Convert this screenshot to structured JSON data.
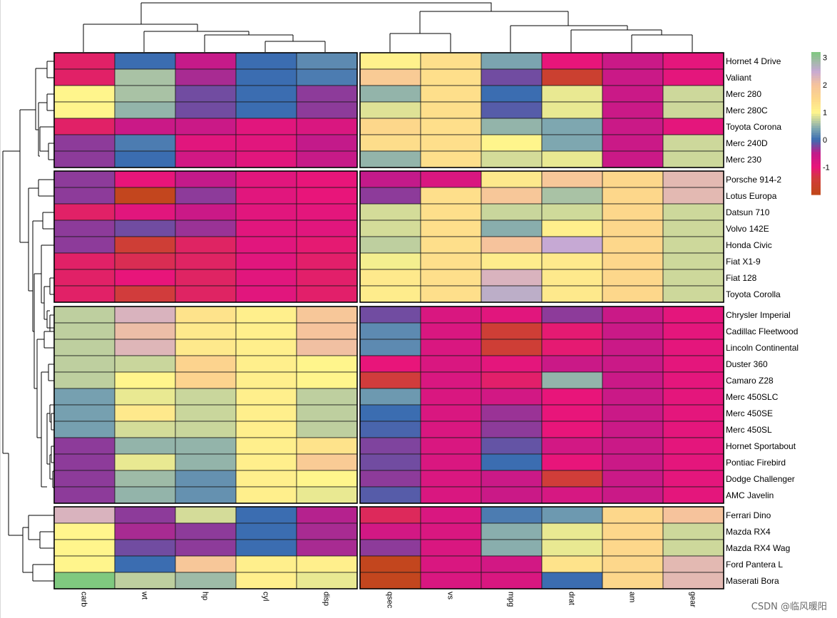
{
  "chart_data": {
    "type": "heatmap",
    "title": "",
    "xlabel": "",
    "ylabel": "",
    "value_range": [
      -2,
      3.2
    ],
    "legend": {
      "position": "right",
      "ticks": [
        3,
        2,
        1,
        0,
        -1
      ]
    },
    "colorscale": [
      {
        "v": -2.0,
        "c": "#c04818"
      },
      {
        "v": -1.4,
        "c": "#d13c3c"
      },
      {
        "v": -1.0,
        "c": "#e8157a"
      },
      {
        "v": -0.5,
        "c": "#c31a8a"
      },
      {
        "v": 0.0,
        "c": "#3b6db1"
      },
      {
        "v": 0.4,
        "c": "#7ea7b0"
      },
      {
        "v": 0.75,
        "c": "#c9d69c"
      },
      {
        "v": 1.0,
        "c": "#fff58c"
      },
      {
        "v": 1.5,
        "c": "#fdd78b"
      },
      {
        "v": 2.0,
        "c": "#f6c39c"
      },
      {
        "v": 2.5,
        "c": "#c6a9d4"
      },
      {
        "v": 3.2,
        "c": "#7fc97f"
      }
    ],
    "column_groups": [
      [
        "carb",
        "wt",
        "hp",
        "cyl",
        "disp"
      ],
      [
        "qsec",
        "vs",
        "mpg",
        "drat",
        "am",
        "gear"
      ]
    ],
    "columns": [
      "carb",
      "wt",
      "hp",
      "cyl",
      "disp",
      "qsec",
      "vs",
      "mpg",
      "drat",
      "am",
      "gear"
    ],
    "row_groups": [
      [
        "Hornet 4 Drive",
        "Valiant",
        "Merc 280",
        "Merc 280C",
        "Toyota Corona",
        "Merc 240D",
        "Merc 230"
      ],
      [
        "Porsche 914-2",
        "Lotus Europa",
        "Datsun 710",
        "Volvo 142E",
        "Honda Civic",
        "Fiat X1-9",
        "Fiat 128",
        "Toyota Corolla"
      ],
      [
        "Chrysler Imperial",
        "Cadillac Fleetwood",
        "Lincoln Continental",
        "Duster 360",
        "Camaro Z28",
        "Merc 450SLC",
        "Merc 450SE",
        "Merc 450SL",
        "Hornet Sportabout",
        "Pontiac Firebird",
        "Dodge Challenger",
        "AMC Javelin"
      ],
      [
        "Ferrari Dino",
        "Mazda RX4",
        "Mazda RX4 Wag",
        "Ford Pantera L",
        "Maserati Bora"
      ]
    ],
    "values": [
      [
        -1.12,
        0.0,
        -0.54,
        0.0,
        0.2,
        1.06,
        1.36,
        0.38,
        -1.0,
        -0.6,
        -0.94
      ],
      [
        -1.12,
        0.6,
        -0.4,
        0.0,
        0.1,
        1.8,
        1.36,
        -0.2,
        -1.6,
        -0.6,
        -0.94
      ],
      [
        1.0,
        0.6,
        -0.2,
        0.0,
        -0.3,
        0.5,
        1.36,
        0.0,
        0.9,
        -0.6,
        0.77
      ],
      [
        1.0,
        0.5,
        -0.2,
        0.0,
        -0.3,
        0.85,
        1.36,
        -0.1,
        0.9,
        -0.6,
        0.77
      ],
      [
        -1.12,
        -0.6,
        -0.6,
        -0.9,
        -0.8,
        1.5,
        1.36,
        0.5,
        0.4,
        -0.6,
        -0.94
      ],
      [
        -0.3,
        0.1,
        -0.9,
        -0.9,
        -0.5,
        1.4,
        1.36,
        1.0,
        0.4,
        -0.6,
        0.77
      ],
      [
        -0.3,
        0.0,
        -0.7,
        -0.9,
        -0.55,
        0.5,
        1.36,
        0.8,
        0.9,
        -0.6,
        0.77
      ],
      [
        -0.3,
        -1.0,
        -0.5,
        -0.9,
        -1.0,
        -0.5,
        -0.8,
        1.2,
        1.9,
        1.5,
        2.2
      ],
      [
        -0.3,
        -1.9,
        -0.3,
        -0.9,
        -1.0,
        -0.3,
        1.36,
        1.9,
        0.6,
        1.5,
        2.2
      ],
      [
        -1.12,
        -0.9,
        -0.6,
        -0.9,
        -0.95,
        0.8,
        1.36,
        0.75,
        0.78,
        1.5,
        0.77
      ],
      [
        -0.3,
        -0.2,
        -0.35,
        -0.9,
        -0.9,
        0.8,
        1.36,
        0.45,
        1.1,
        1.5,
        0.77
      ],
      [
        -0.3,
        -1.5,
        -1.15,
        -0.9,
        -1.05,
        0.7,
        1.36,
        2.0,
        2.5,
        1.5,
        0.77
      ],
      [
        -1.12,
        -1.25,
        -1.15,
        -0.9,
        -1.1,
        0.95,
        1.36,
        1.15,
        1.2,
        1.5,
        0.77
      ],
      [
        -1.12,
        -1.0,
        -1.15,
        -0.9,
        -1.1,
        1.2,
        1.36,
        2.3,
        1.2,
        1.5,
        0.77
      ],
      [
        -1.12,
        -1.4,
        -1.15,
        -0.9,
        -1.1,
        1.15,
        1.36,
        2.6,
        1.2,
        1.5,
        0.77
      ],
      [
        0.7,
        2.3,
        1.3,
        1.1,
        1.9,
        -0.2,
        -0.8,
        -0.9,
        -0.3,
        -0.6,
        -0.94
      ],
      [
        0.7,
        2.1,
        1.2,
        1.1,
        2.0,
        0.2,
        -0.8,
        -1.5,
        -1.05,
        -0.6,
        -0.94
      ],
      [
        0.7,
        2.25,
        1.2,
        1.1,
        2.05,
        0.2,
        -0.8,
        -1.5,
        -1.05,
        -0.6,
        -0.94
      ],
      [
        0.7,
        0.75,
        1.6,
        1.1,
        1.0,
        -1.0,
        -0.8,
        -0.95,
        -0.6,
        -0.6,
        -0.94
      ],
      [
        0.7,
        1.0,
        1.6,
        1.1,
        1.0,
        -1.4,
        -0.8,
        -1.1,
        0.5,
        -0.6,
        -0.94
      ],
      [
        0.35,
        0.9,
        0.75,
        1.1,
        0.7,
        0.3,
        -0.8,
        -0.7,
        -1.0,
        -0.6,
        -0.94
      ],
      [
        0.35,
        1.2,
        0.75,
        1.1,
        0.7,
        0.0,
        -0.8,
        -0.35,
        -1.0,
        -0.6,
        -0.94
      ],
      [
        0.35,
        0.8,
        0.75,
        1.1,
        0.7,
        -0.05,
        -0.8,
        -0.3,
        -1.0,
        -0.6,
        -0.94
      ],
      [
        -0.3,
        0.5,
        0.5,
        1.1,
        1.3,
        -0.25,
        -0.8,
        -0.15,
        -0.7,
        -0.6,
        -0.94
      ],
      [
        -0.3,
        0.9,
        0.5,
        1.1,
        1.8,
        -0.2,
        -0.8,
        0.0,
        -1.0,
        -0.6,
        -0.94
      ],
      [
        -0.3,
        0.55,
        0.25,
        1.1,
        1.0,
        -0.3,
        -0.8,
        -0.6,
        -1.45,
        -0.6,
        -0.94
      ],
      [
        -0.3,
        0.5,
        0.25,
        1.1,
        0.9,
        -0.1,
        -0.8,
        -0.6,
        -0.75,
        -0.6,
        -0.94
      ],
      [
        2.3,
        -0.3,
        0.8,
        0.0,
        -0.45,
        -1.2,
        -0.8,
        0.1,
        0.3,
        1.5,
        2.0
      ],
      [
        1.0,
        -0.4,
        -0.3,
        0.0,
        -0.4,
        -0.7,
        -0.8,
        0.45,
        0.9,
        1.5,
        0.77
      ],
      [
        1.0,
        -0.2,
        -0.3,
        0.0,
        -0.4,
        -0.3,
        -0.8,
        0.45,
        0.9,
        1.5,
        0.77
      ],
      [
        1.0,
        0.0,
        1.9,
        1.1,
        1.1,
        -1.9,
        -0.8,
        -0.7,
        1.3,
        1.5,
        2.2
      ],
      [
        3.2,
        0.7,
        0.55,
        1.1,
        0.9,
        -1.9,
        -0.8,
        -0.8,
        0.0,
        1.5,
        2.2
      ]
    ],
    "watermark": "CSDN @临风暖阳"
  }
}
